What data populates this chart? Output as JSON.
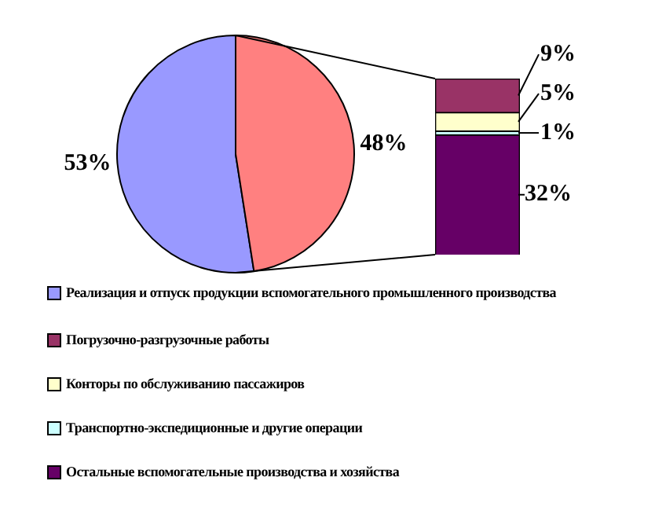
{
  "chart_data": [
    {
      "type": "pie",
      "categories": [
        "Реализация и отпуск продукции вспомогательного промышленного производства",
        null
      ],
      "values": [
        53,
        48
      ],
      "colors": [
        "#9999ff",
        "#ff8080"
      ],
      "value_labels": [
        "53%",
        "48%"
      ],
      "legend": "bottom"
    },
    {
      "type": "bar",
      "stacked": true,
      "categories": [
        null
      ],
      "legend": "bottom",
      "series": [
        {
          "name": "Остальные вспомогательные производства и хозяйства",
          "color": "#660066",
          "values": [
            32
          ],
          "value_labels": [
            "32%"
          ]
        },
        {
          "name": "Транспортно-экспедиционные и другие операции",
          "color": "#ccffff",
          "values": [
            1
          ],
          "value_labels": [
            "1%"
          ]
        },
        {
          "name": "Конторы по обслуживанию пассажиров",
          "color": "#ffffcc",
          "values": [
            5
          ],
          "value_labels": [
            "5%"
          ]
        },
        {
          "name": "Погрузочно-разгрузочные работы",
          "color": "#993366",
          "values": [
            9
          ],
          "value_labels": [
            "9%"
          ]
        }
      ]
    }
  ]
}
